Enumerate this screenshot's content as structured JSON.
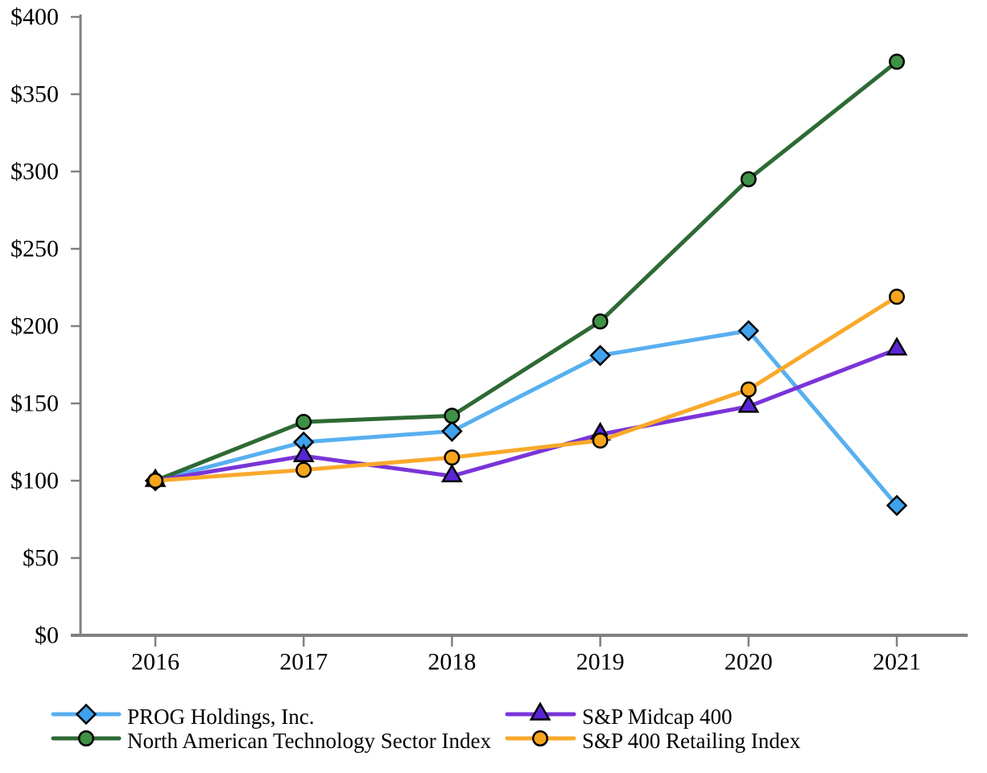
{
  "chart_data": {
    "type": "line",
    "title": "",
    "xlabel": "",
    "ylabel": "",
    "x_tick_labels": [
      "2016",
      "2017",
      "2018",
      "2019",
      "2020",
      "2021"
    ],
    "y_ticks": [
      0,
      50,
      100,
      150,
      200,
      250,
      300,
      350,
      400
    ],
    "y_tick_labels": [
      "$0",
      "$50",
      "$100",
      "$150",
      "$200",
      "$250",
      "$300",
      "$350",
      "$400"
    ],
    "ylim": [
      0,
      400
    ],
    "grid": false,
    "legend_position": "bottom-two-columns",
    "axis_color": "#808080",
    "text_color": "#000000",
    "marker_outline_color": "#000000",
    "series": [
      {
        "name": "PROG Holdings, Inc.",
        "marker": "diamond",
        "line_color": "#58AFF0",
        "marker_color": "#3FA2EE",
        "values": [
          100,
          125,
          132,
          181,
          197,
          84
        ]
      },
      {
        "name": "North American Technology Sector Index",
        "marker": "circle",
        "line_color": "#2D6A34",
        "marker_color": "#3E9245",
        "values": [
          100,
          138,
          142,
          203,
          295,
          371
        ]
      },
      {
        "name": "S&P Midcap 400",
        "marker": "triangle",
        "line_color": "#7A34D8",
        "marker_color": "#5A25D4",
        "values": [
          100,
          116,
          103,
          130,
          148,
          185
        ]
      },
      {
        "name": "S&P 400 Retailing Index",
        "marker": "circle",
        "line_color": "#F9A92A",
        "marker_color": "#F7A51D",
        "values": [
          100,
          107,
          115,
          126,
          159,
          219
        ]
      }
    ],
    "legend_rows": [
      [
        0,
        2
      ],
      [
        1,
        3
      ]
    ]
  }
}
